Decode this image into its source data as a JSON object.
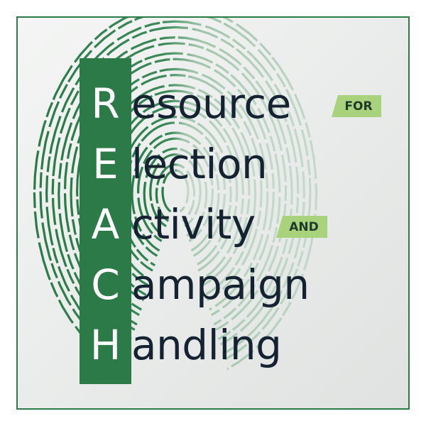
{
  "logo": {
    "initials": [
      "R",
      "E",
      "A",
      "C",
      "H"
    ],
    "words": [
      "esource",
      "lection",
      "ctivity",
      "ampaign",
      "andling"
    ],
    "tags": {
      "for": "FOR",
      "and": "AND"
    }
  },
  "colors": {
    "border": "#2b7a48",
    "bar": "#2b7a48",
    "word_text": "#152232",
    "tag_bg": "#a9d27c",
    "fingerprint_left": "#2b7a48",
    "fingerprint_right": "#a7c7b0"
  },
  "icons": {
    "background": "fingerprint-icon"
  }
}
